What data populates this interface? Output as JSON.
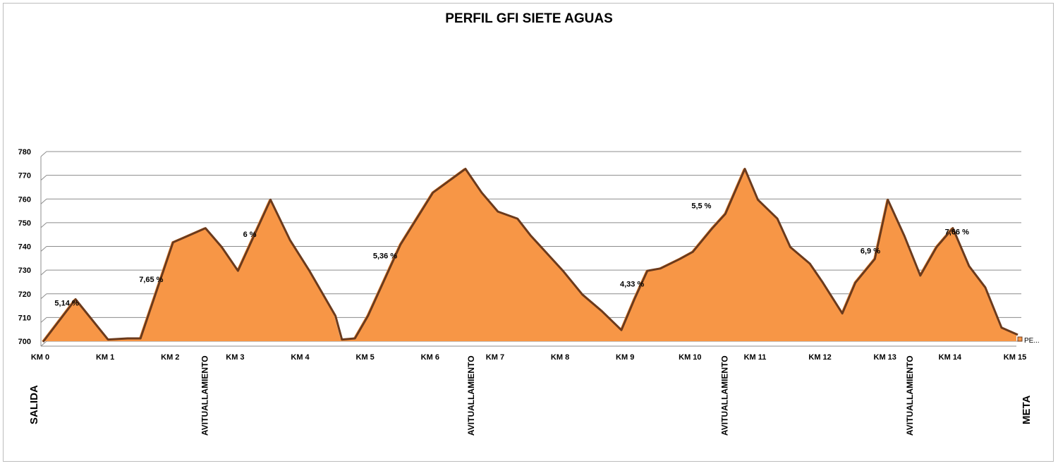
{
  "chart_data": {
    "type": "area",
    "title": "PERFIL GFI SIETE AGUAS",
    "ylim": [
      700,
      780
    ],
    "xlim": [
      0,
      15
    ],
    "y_ticks": [
      "700",
      "710",
      "720",
      "730",
      "740",
      "750",
      "760",
      "770",
      "780"
    ],
    "x_ticks": [
      {
        "km": 0,
        "label": "KM 0"
      },
      {
        "km": 1,
        "label": "KM 1"
      },
      {
        "km": 2,
        "label": "KM 2"
      },
      {
        "km": 3,
        "label": "KM 3"
      },
      {
        "km": 4,
        "label": "KM 4"
      },
      {
        "km": 5,
        "label": "KM 5"
      },
      {
        "km": 6,
        "label": "KM 6"
      },
      {
        "km": 7,
        "label": "KM 7"
      },
      {
        "km": 8,
        "label": "KM 8"
      },
      {
        "km": 9,
        "label": "KM 9"
      },
      {
        "km": 10,
        "label": "KM 10"
      },
      {
        "km": 11,
        "label": "KM 11"
      },
      {
        "km": 12,
        "label": "KM 12"
      },
      {
        "km": 13,
        "label": "KM 13"
      },
      {
        "km": 14,
        "label": "KM 14"
      },
      {
        "km": 15,
        "label": "KM 15"
      }
    ],
    "grid": true,
    "series": [
      {
        "name": "PE...",
        "color": "#f79646",
        "line_color": "#6b3a1c",
        "points": [
          [
            0,
            700
          ],
          [
            0.5,
            718
          ],
          [
            1,
            701
          ],
          [
            1.3,
            701.5
          ],
          [
            1.5,
            701.5
          ],
          [
            2,
            742
          ],
          [
            2.5,
            748
          ],
          [
            2.75,
            740
          ],
          [
            3,
            730
          ],
          [
            3.5,
            760
          ],
          [
            3.8,
            743
          ],
          [
            4.1,
            730
          ],
          [
            4.5,
            711
          ],
          [
            4.6,
            701
          ],
          [
            4.8,
            701.5
          ],
          [
            5,
            711
          ],
          [
            5.5,
            741
          ],
          [
            6,
            763
          ],
          [
            6.5,
            773
          ],
          [
            6.75,
            763
          ],
          [
            7,
            755
          ],
          [
            7.3,
            752
          ],
          [
            7.5,
            745
          ],
          [
            7.8,
            736
          ],
          [
            8,
            730
          ],
          [
            8.3,
            720
          ],
          [
            8.6,
            713
          ],
          [
            8.9,
            705
          ],
          [
            9.1,
            718
          ],
          [
            9.3,
            730
          ],
          [
            9.5,
            731
          ],
          [
            9.8,
            735
          ],
          [
            10,
            738
          ],
          [
            10.3,
            748
          ],
          [
            10.5,
            754
          ],
          [
            10.8,
            773
          ],
          [
            11,
            760
          ],
          [
            11.3,
            752
          ],
          [
            11.5,
            740
          ],
          [
            11.8,
            733
          ],
          [
            12,
            725
          ],
          [
            12.3,
            712
          ],
          [
            12.5,
            725
          ],
          [
            12.8,
            735
          ],
          [
            13,
            760
          ],
          [
            13.25,
            745
          ],
          [
            13.5,
            728
          ],
          [
            13.75,
            740
          ],
          [
            14,
            748
          ],
          [
            14.25,
            732
          ],
          [
            14.5,
            723
          ],
          [
            14.75,
            706
          ],
          [
            15,
            703
          ]
        ]
      }
    ],
    "legend": {
      "position": "right",
      "label": "PE..."
    },
    "grade_labels": [
      {
        "text": "5,14 %",
        "km": 0.2,
        "elev": 715
      },
      {
        "text": "7,65 %",
        "km": 1.5,
        "elev": 725
      },
      {
        "text": "6 %",
        "km": 3.1,
        "elev": 744
      },
      {
        "text": "5,36 %",
        "km": 5.1,
        "elev": 735
      },
      {
        "text": "4,33 %",
        "km": 8.9,
        "elev": 723
      },
      {
        "text": "5,5 %",
        "km": 10.0,
        "elev": 756
      },
      {
        "text": "6,9 %",
        "km": 12.6,
        "elev": 737
      },
      {
        "text": "7,66 %",
        "km": 13.9,
        "elev": 745
      }
    ],
    "annotations": [
      {
        "text": "SALIDA",
        "km": 0
      },
      {
        "text": "AVITUALLAMIENTO",
        "km": 2.5
      },
      {
        "text": "AVITUALLAMIENTO",
        "km": 6.6
      },
      {
        "text": "AVITUALLAMIENTO",
        "km": 10.5
      },
      {
        "text": "AVITUALLAMIENTO",
        "km": 13.35
      },
      {
        "text": "META",
        "km": 15
      }
    ]
  }
}
